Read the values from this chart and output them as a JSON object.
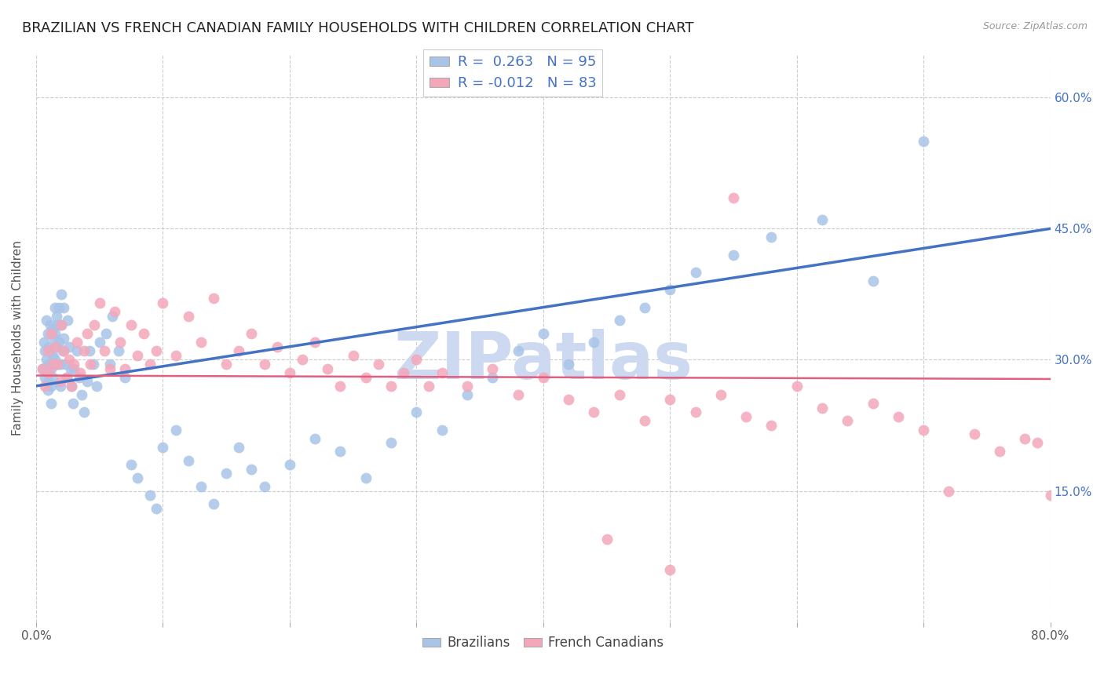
{
  "title": "BRAZILIAN VS FRENCH CANADIAN FAMILY HOUSEHOLDS WITH CHILDREN CORRELATION CHART",
  "source": "Source: ZipAtlas.com",
  "ylabel": "Family Households with Children",
  "xlim": [
    0.0,
    0.8
  ],
  "ylim": [
    0.0,
    0.65
  ],
  "xticks": [
    0.0,
    0.1,
    0.2,
    0.3,
    0.4,
    0.5,
    0.6,
    0.7,
    0.8
  ],
  "ytick_positions": [
    0.15,
    0.3,
    0.45,
    0.6
  ],
  "ytick_labels": [
    "15.0%",
    "30.0%",
    "45.0%",
    "60.0%"
  ],
  "brazil_R": 0.263,
  "brazil_N": 95,
  "french_R": -0.012,
  "french_N": 83,
  "brazil_color": "#a8c4e8",
  "french_color": "#f4a7b9",
  "brazil_line_color": "#4472c4",
  "french_line_color": "#e06080",
  "grid_color": "#cccccc",
  "background_color": "#ffffff",
  "watermark": "ZIPatlas",
  "watermark_color": "#ccd9f0",
  "title_fontsize": 13,
  "axis_label_fontsize": 11,
  "tick_fontsize": 11,
  "legend_fontsize": 13,
  "brazil_line_x0": 0.0,
  "brazil_line_y0": 0.27,
  "brazil_line_x1": 0.8,
  "brazil_line_y1": 0.45,
  "french_line_x0": 0.0,
  "french_line_y0": 0.282,
  "french_line_x1": 0.8,
  "french_line_y1": 0.278,
  "brazil_scatter_x": [
    0.005,
    0.006,
    0.007,
    0.007,
    0.008,
    0.008,
    0.009,
    0.009,
    0.009,
    0.01,
    0.01,
    0.01,
    0.011,
    0.011,
    0.012,
    0.012,
    0.012,
    0.013,
    0.013,
    0.013,
    0.014,
    0.014,
    0.015,
    0.015,
    0.015,
    0.016,
    0.016,
    0.017,
    0.017,
    0.018,
    0.018,
    0.019,
    0.019,
    0.02,
    0.02,
    0.021,
    0.022,
    0.022,
    0.023,
    0.024,
    0.025,
    0.026,
    0.027,
    0.028,
    0.029,
    0.03,
    0.032,
    0.034,
    0.036,
    0.038,
    0.04,
    0.042,
    0.045,
    0.048,
    0.05,
    0.055,
    0.058,
    0.06,
    0.065,
    0.07,
    0.075,
    0.08,
    0.09,
    0.095,
    0.1,
    0.11,
    0.12,
    0.13,
    0.14,
    0.15,
    0.16,
    0.17,
    0.18,
    0.2,
    0.22,
    0.24,
    0.26,
    0.28,
    0.3,
    0.32,
    0.34,
    0.36,
    0.38,
    0.4,
    0.42,
    0.44,
    0.46,
    0.48,
    0.5,
    0.52,
    0.55,
    0.58,
    0.62,
    0.66,
    0.7
  ],
  "brazil_scatter_y": [
    0.29,
    0.32,
    0.31,
    0.28,
    0.345,
    0.3,
    0.33,
    0.285,
    0.265,
    0.315,
    0.295,
    0.275,
    0.34,
    0.31,
    0.29,
    0.27,
    0.25,
    0.335,
    0.305,
    0.28,
    0.325,
    0.295,
    0.36,
    0.33,
    0.3,
    0.35,
    0.315,
    0.34,
    0.295,
    0.36,
    0.32,
    0.295,
    0.27,
    0.375,
    0.34,
    0.31,
    0.36,
    0.325,
    0.295,
    0.28,
    0.345,
    0.315,
    0.29,
    0.27,
    0.25,
    0.29,
    0.31,
    0.28,
    0.26,
    0.24,
    0.275,
    0.31,
    0.295,
    0.27,
    0.32,
    0.33,
    0.295,
    0.35,
    0.31,
    0.28,
    0.18,
    0.165,
    0.145,
    0.13,
    0.2,
    0.22,
    0.185,
    0.155,
    0.135,
    0.17,
    0.2,
    0.175,
    0.155,
    0.18,
    0.21,
    0.195,
    0.165,
    0.205,
    0.24,
    0.22,
    0.26,
    0.28,
    0.31,
    0.33,
    0.295,
    0.32,
    0.345,
    0.36,
    0.38,
    0.4,
    0.42,
    0.44,
    0.46,
    0.39,
    0.55
  ],
  "french_scatter_x": [
    0.005,
    0.007,
    0.009,
    0.01,
    0.012,
    0.013,
    0.015,
    0.017,
    0.019,
    0.02,
    0.022,
    0.024,
    0.026,
    0.028,
    0.03,
    0.032,
    0.035,
    0.038,
    0.04,
    0.043,
    0.046,
    0.05,
    0.054,
    0.058,
    0.062,
    0.066,
    0.07,
    0.075,
    0.08,
    0.085,
    0.09,
    0.095,
    0.1,
    0.11,
    0.12,
    0.13,
    0.14,
    0.15,
    0.16,
    0.17,
    0.18,
    0.19,
    0.2,
    0.21,
    0.22,
    0.23,
    0.24,
    0.25,
    0.26,
    0.27,
    0.28,
    0.29,
    0.3,
    0.31,
    0.32,
    0.34,
    0.36,
    0.38,
    0.4,
    0.42,
    0.44,
    0.46,
    0.48,
    0.5,
    0.52,
    0.54,
    0.56,
    0.58,
    0.6,
    0.62,
    0.64,
    0.66,
    0.68,
    0.7,
    0.72,
    0.74,
    0.76,
    0.78,
    0.79,
    0.8,
    0.45,
    0.5,
    0.55
  ],
  "french_scatter_y": [
    0.29,
    0.27,
    0.31,
    0.285,
    0.33,
    0.295,
    0.315,
    0.295,
    0.275,
    0.34,
    0.31,
    0.28,
    0.3,
    0.27,
    0.295,
    0.32,
    0.285,
    0.31,
    0.33,
    0.295,
    0.34,
    0.365,
    0.31,
    0.29,
    0.355,
    0.32,
    0.29,
    0.34,
    0.305,
    0.33,
    0.295,
    0.31,
    0.365,
    0.305,
    0.35,
    0.32,
    0.37,
    0.295,
    0.31,
    0.33,
    0.295,
    0.315,
    0.285,
    0.3,
    0.32,
    0.29,
    0.27,
    0.305,
    0.28,
    0.295,
    0.27,
    0.285,
    0.3,
    0.27,
    0.285,
    0.27,
    0.29,
    0.26,
    0.28,
    0.255,
    0.24,
    0.26,
    0.23,
    0.255,
    0.24,
    0.26,
    0.235,
    0.225,
    0.27,
    0.245,
    0.23,
    0.25,
    0.235,
    0.22,
    0.15,
    0.215,
    0.195,
    0.21,
    0.205,
    0.145,
    0.095,
    0.06,
    0.485
  ]
}
